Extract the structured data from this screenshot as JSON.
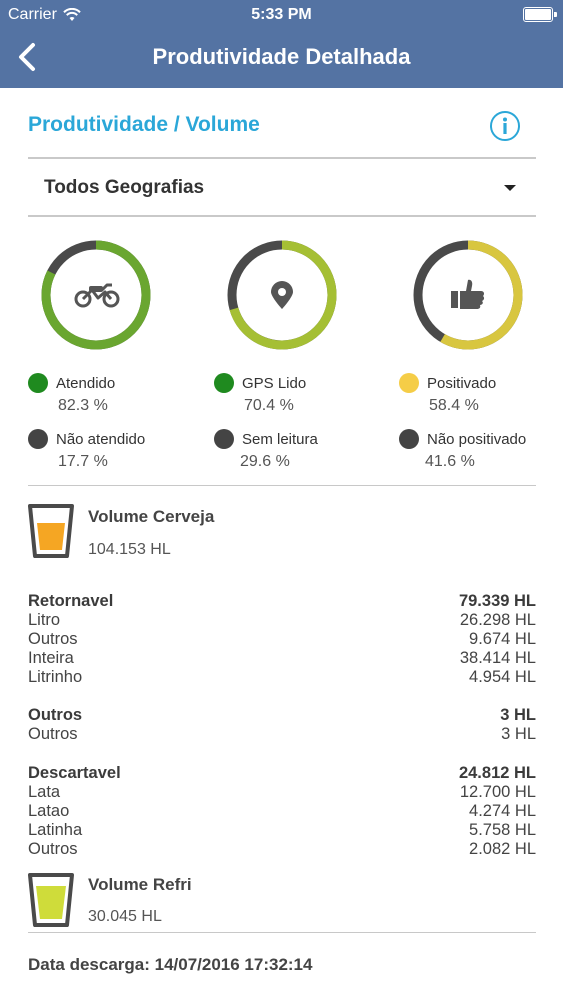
{
  "status_bar": {
    "carrier": "Carrier",
    "time": "5:33 PM"
  },
  "nav": {
    "back_icon": "chevron-left-icon",
    "title": "Produtividade Detalhada"
  },
  "section": {
    "title": "Produtividade / Volume",
    "info_icon": "info-icon"
  },
  "filter": {
    "selected": "Todos Geografias",
    "caret_icon": "caret-down-icon"
  },
  "gauges": [
    {
      "icon": "motorcycle-icon",
      "primary_pct": 0.823,
      "primary_color": "#6aa630",
      "secondary_color": "#4a4a4a"
    },
    {
      "icon": "location-pin-icon",
      "primary_pct": 0.704,
      "primary_color": "#a5bf34",
      "secondary_color": "#4a4a4a"
    },
    {
      "icon": "thumbs-up-icon",
      "primary_pct": 0.584,
      "primary_color": "#d8c640",
      "secondary_color": "#4a4a4a"
    }
  ],
  "legends": [
    [
      {
        "label": "Atendido",
        "value": "82.3 %",
        "color": "#1f8a1f"
      },
      {
        "label": "Não atendido",
        "value": "17.7 %",
        "color": "#444444"
      }
    ],
    [
      {
        "label": "GPS Lido",
        "value": "70.4 %",
        "color": "#1f8a1f"
      },
      {
        "label": "Sem leitura",
        "value": "29.6 %",
        "color": "#444444"
      }
    ],
    [
      {
        "label": "Positivado",
        "value": "58.4 %",
        "color": "#f5cd47"
      },
      {
        "label": "Não positivado",
        "value": "41.6 %",
        "color": "#444444"
      }
    ]
  ],
  "volume_cerveja": {
    "title": "Volume Cerveja",
    "value": "104.153 HL",
    "icon": "beer-glass-icon",
    "fill_color": "#f5a623"
  },
  "groups": [
    {
      "name": "Retornavel",
      "total": "79.339 HL",
      "items": [
        {
          "name": "Litro",
          "value": "26.298 HL"
        },
        {
          "name": "Outros",
          "value": "9.674 HL"
        },
        {
          "name": "Inteira",
          "value": "38.414 HL"
        },
        {
          "name": "Litrinho",
          "value": "4.954 HL"
        }
      ]
    },
    {
      "name": "Outros",
      "total": "3 HL",
      "items": [
        {
          "name": "Outros",
          "value": "3 HL"
        }
      ]
    },
    {
      "name": "Descartavel",
      "total": "24.812 HL",
      "items": [
        {
          "name": "Lata",
          "value": "12.700 HL"
        },
        {
          "name": "Latao",
          "value": "4.274 HL"
        },
        {
          "name": "Latinha",
          "value": "5.758 HL"
        },
        {
          "name": "Outros",
          "value": "2.082 HL"
        }
      ]
    }
  ],
  "volume_refri": {
    "title": "Volume Refri",
    "value": "30.045 HL",
    "icon": "soda-glass-icon",
    "fill_color": "#cfdc3a"
  },
  "footer": {
    "download_date": "Data descarga: 14/07/2016 17:32:14"
  }
}
